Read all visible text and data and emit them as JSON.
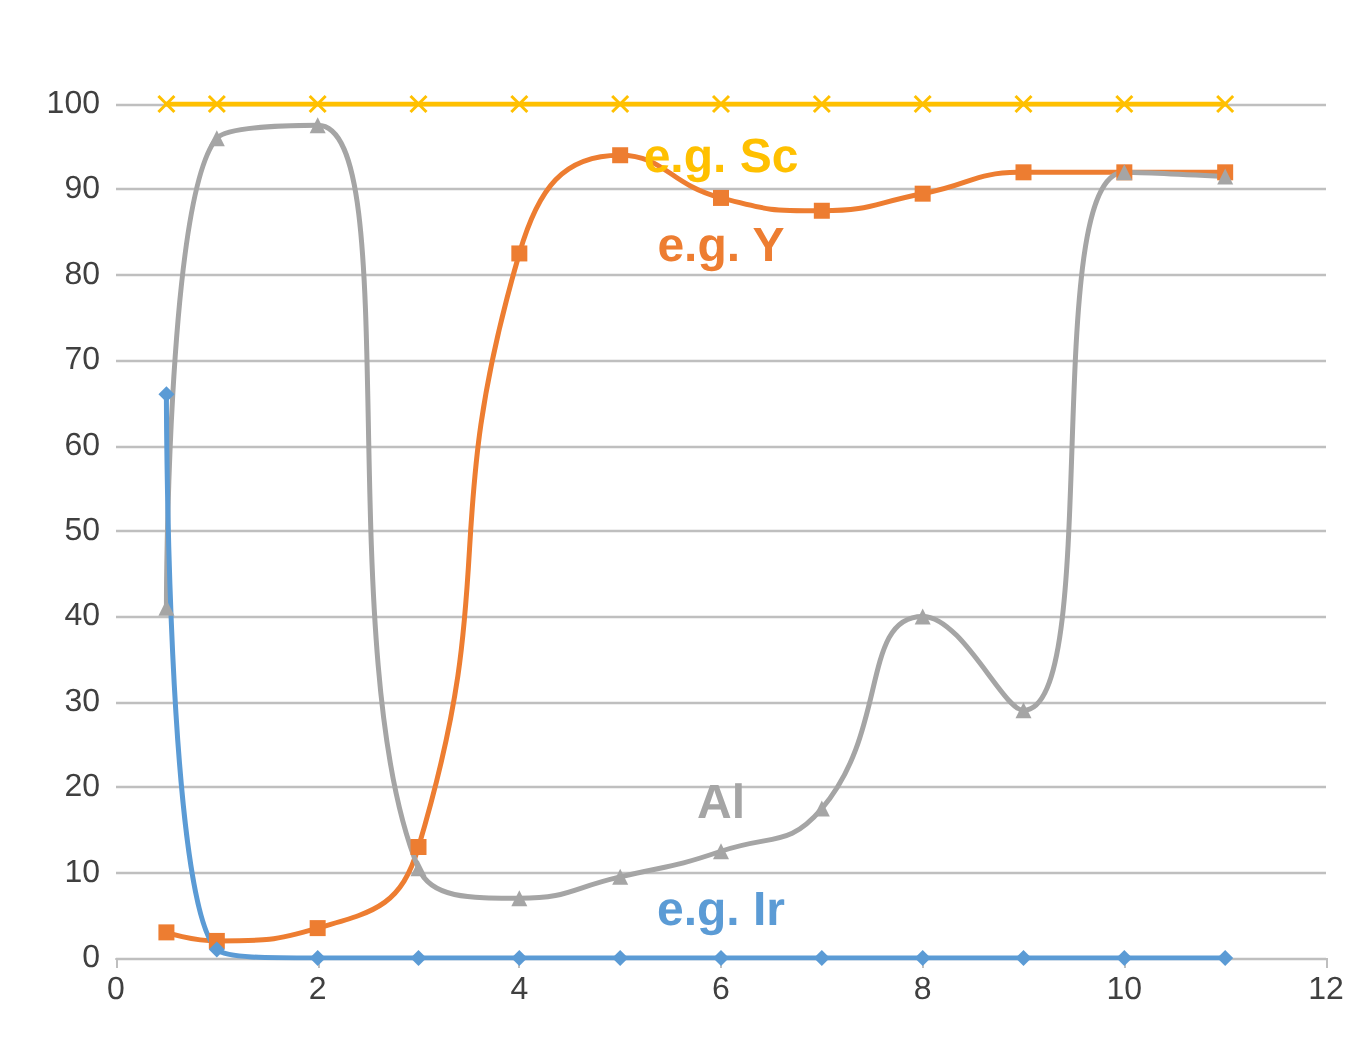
{
  "chart_data": {
    "type": "line",
    "x": [
      0.5,
      1,
      2,
      3,
      4,
      5,
      6,
      7,
      8,
      9,
      10,
      11
    ],
    "series": [
      {
        "name": "e.g. Sc",
        "color": "#ffc000",
        "marker": "cross",
        "values": [
          100,
          100,
          100,
          100,
          100,
          100,
          100,
          100,
          100,
          100,
          100,
          100
        ]
      },
      {
        "name": "e.g. Y",
        "color": "#ed7d31",
        "marker": "square",
        "values": [
          3,
          2,
          3.5,
          13,
          82.5,
          94,
          89,
          87.5,
          89.5,
          92,
          92,
          92
        ]
      },
      {
        "name": "Al",
        "color": "#a5a5a5",
        "marker": "triangle",
        "values": [
          41,
          96,
          97.5,
          10.5,
          7,
          9.5,
          12.5,
          17.5,
          40,
          29,
          92,
          91.5
        ]
      },
      {
        "name": "e.g. Ir",
        "color": "#5b9bd5",
        "marker": "diamond",
        "values": [
          66,
          1,
          0,
          0,
          0,
          0,
          0,
          0,
          0,
          0,
          0,
          0
        ]
      }
    ],
    "xlim": [
      0,
      12
    ],
    "xticks": [
      0,
      2,
      4,
      6,
      8,
      10,
      12
    ],
    "ylim": [
      0,
      100
    ],
    "yticks": [
      0,
      10,
      20,
      30,
      40,
      50,
      60,
      70,
      80,
      90,
      100
    ],
    "grid": "y"
  }
}
